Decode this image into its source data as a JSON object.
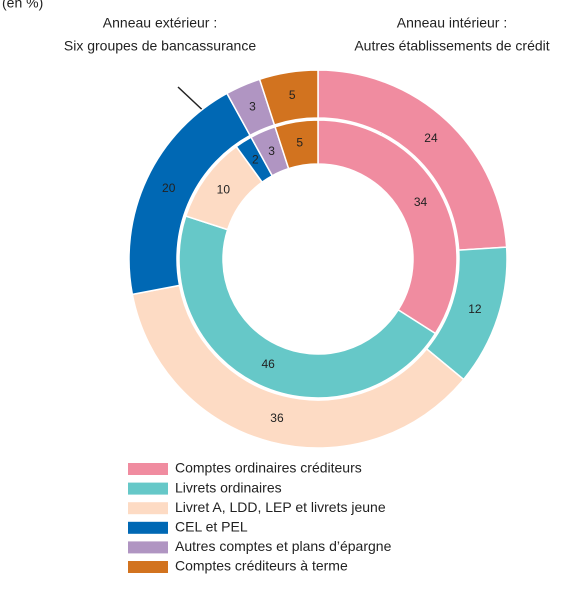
{
  "chart_data": {
    "type": "nested-donut",
    "unit_note": "(en %)",
    "categories": [
      "Comptes ordinaires créditeurs",
      "Livrets ordinaires",
      "Livret A, LDD, LEP et livrets jeune",
      "CEL et PEL",
      "Autres comptes et plans d’épargne",
      "Comptes créditeurs à terme"
    ],
    "colors": [
      "#f08ca0",
      "#66c8c8",
      "#fddbc4",
      "#0068b4",
      "#b095c2",
      "#d2731f"
    ],
    "series": [
      {
        "name": "Anneau extérieur :",
        "description": "Six groupes de bancassurance",
        "values": [
          24,
          12,
          36,
          20,
          3,
          5
        ]
      },
      {
        "name": "Anneau intérieur :",
        "description": "Autres établissements de crédit",
        "values": [
          34,
          46,
          10,
          2,
          3,
          5
        ]
      }
    ]
  }
}
